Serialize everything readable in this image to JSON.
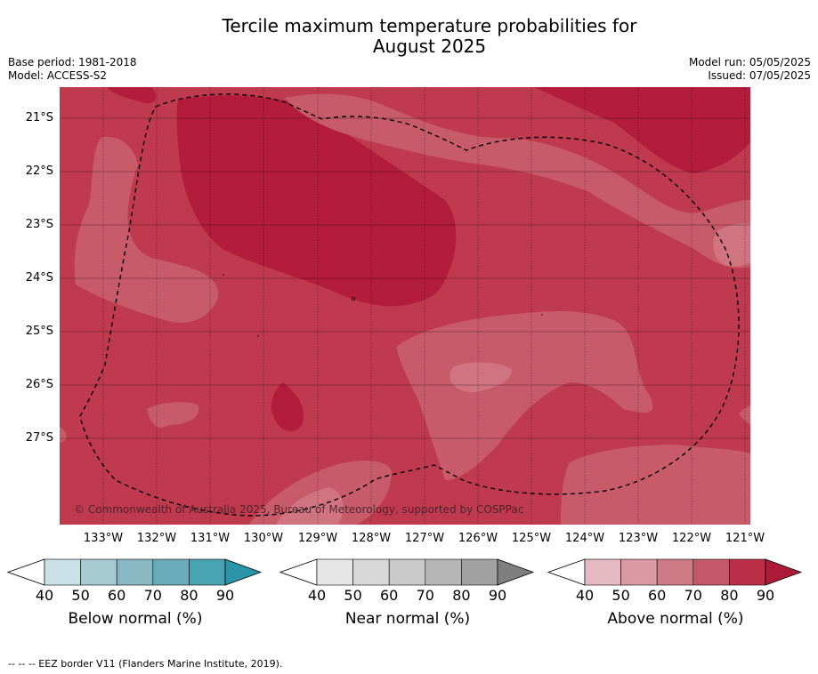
{
  "title": {
    "line1": "Tercile maximum temperature probabilities for",
    "line2": "August 2025"
  },
  "meta": {
    "base_period": "Base period: 1981-2018",
    "model": "Model: ACCESS-S2",
    "model_run": "Model run: 05/05/2025",
    "issued": "Issued: 07/05/2025"
  },
  "map": {
    "latitude_labels": [
      "21°S",
      "22°S",
      "23°S",
      "24°S",
      "25°S",
      "26°S",
      "27°S"
    ],
    "longitude_labels": [
      "133°W",
      "132°W",
      "131°W",
      "130°W",
      "129°W",
      "128°W",
      "127°W",
      "126°W",
      "125°W",
      "124°W",
      "123°W",
      "122°W",
      "121°W"
    ],
    "copyright": "© Commonwealth of Australia 2025, Bureau of Meteorology, supported by COSPPac",
    "colors": {
      "above_80_90": "#b31c3a",
      "above_70_80": "#bf3a4e",
      "above_60_70": "#c85b69",
      "above_50_60": "#cf7480",
      "eez_line": "#000000"
    }
  },
  "colorbars": [
    {
      "name": "below",
      "title": "Below normal (%)",
      "ticks": [
        "40",
        "50",
        "60",
        "70",
        "80",
        "90"
      ],
      "colors": [
        "#ffffff",
        "#c9e2e8",
        "#a7c9d0",
        "#8ab9c4",
        "#6aacba",
        "#4aa3b2",
        "#2a94a8"
      ]
    },
    {
      "name": "near",
      "title": "Near normal (%)",
      "ticks": [
        "40",
        "50",
        "60",
        "70",
        "80",
        "90"
      ],
      "colors": [
        "#ffffff",
        "#e6e6e6",
        "#d8d8d8",
        "#c9c9c9",
        "#b6b6b6",
        "#a1a1a1",
        "#7f7f7f"
      ]
    },
    {
      "name": "above",
      "title": "Above normal (%)",
      "ticks": [
        "40",
        "50",
        "60",
        "70",
        "80",
        "90"
      ],
      "colors": [
        "#ffffff",
        "#e4b9c1",
        "#d99aa5",
        "#cf7b86",
        "#c45768",
        "#bb2f48",
        "#ad1a37"
      ]
    }
  ],
  "footnote": "--  --  -- EEZ border V11 (Flanders Marine Institute, 2019)."
}
